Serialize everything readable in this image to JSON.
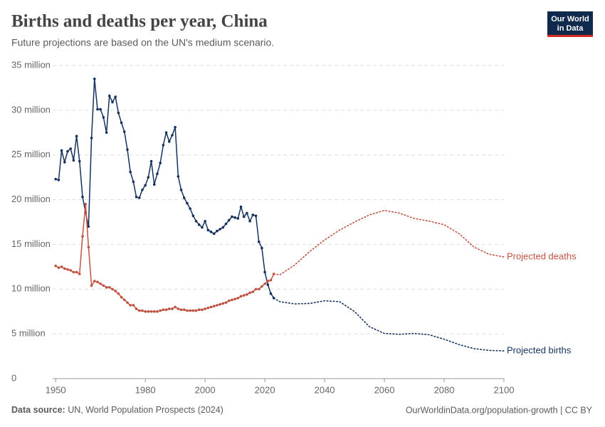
{
  "chart_data": {
    "type": "line",
    "title": "Births and deaths per year, China",
    "subtitle": "Future projections are based on the UN's medium scenario.",
    "logo": [
      "Our World",
      "in Data"
    ],
    "source_label": "Data source:",
    "source": "UN, World Population Prospects (2024)",
    "url": "OurWorldinData.org/population-growth | CC BY",
    "xlim": [
      1949,
      2100
    ],
    "xticks": [
      1950,
      1980,
      2000,
      2020,
      2040,
      2060,
      2080,
      2100
    ],
    "ylim": [
      0,
      35
    ],
    "yticks": [
      0,
      {
        "value": 5,
        "label": "5 million"
      },
      {
        "value": 10,
        "label": "10 million"
      },
      {
        "value": 15,
        "label": "15 million"
      },
      {
        "value": 20,
        "label": "20 million"
      },
      {
        "value": 25,
        "label": "25 million"
      },
      {
        "value": 30,
        "label": "30 million"
      },
      {
        "value": 35,
        "label": "35 million"
      }
    ],
    "grid": true,
    "series": [
      {
        "color": "#15325c",
        "line_style": "solid",
        "markers": true,
        "x": [
          1950,
          1951,
          1952,
          1953,
          1954,
          1955,
          1956,
          1957,
          1958,
          1959,
          1960,
          1961,
          1962,
          1963,
          1964,
          1965,
          1966,
          1967,
          1968,
          1969,
          1970,
          1971,
          1972,
          1973,
          1974,
          1975,
          1976,
          1977,
          1978,
          1979,
          1980,
          1981,
          1982,
          1983,
          1984,
          1985,
          1986,
          1987,
          1988,
          1989,
          1990,
          1991,
          1992,
          1993,
          1994,
          1995,
          1996,
          1997,
          1998,
          1999,
          2000,
          2001,
          2002,
          2003,
          2004,
          2005,
          2006,
          2007,
          2008,
          2009,
          2010,
          2011,
          2012,
          2013,
          2014,
          2015,
          2016,
          2017,
          2018,
          2019,
          2020,
          2021,
          2022,
          2023
        ],
        "values": [
          22.3,
          22.2,
          25.5,
          24.2,
          25.4,
          25.7,
          24.4,
          27.1,
          24.3,
          20.3,
          18.6,
          17.0,
          26.9,
          33.5,
          30.1,
          30.1,
          29.2,
          27.5,
          31.6,
          30.9,
          31.5,
          29.7,
          28.6,
          27.6,
          25.6,
          23.1,
          22.0,
          20.3,
          20.2,
          21.1,
          21.6,
          22.5,
          24.3,
          21.7,
          22.9,
          24.1,
          26.1,
          27.5,
          26.5,
          27.2,
          28.1,
          22.6,
          21.1,
          20.2,
          19.6,
          19.0,
          18.2,
          17.6,
          17.2,
          16.9,
          17.6,
          16.6,
          16.4,
          16.2,
          16.5,
          16.7,
          16.9,
          17.3,
          17.7,
          18.1,
          18.0,
          17.9,
          19.2,
          18.1,
          18.5,
          17.6,
          18.3,
          18.2,
          15.3,
          14.6,
          11.9,
          10.5,
          9.5,
          9.0
        ]
      },
      {
        "color": "#c05243",
        "line_style": "solid",
        "markers": true,
        "x": [
          1950,
          1951,
          1952,
          1953,
          1954,
          1955,
          1956,
          1957,
          1958,
          1959,
          1960,
          1961,
          1962,
          1963,
          1964,
          1965,
          1966,
          1967,
          1968,
          1969,
          1970,
          1971,
          1972,
          1973,
          1974,
          1975,
          1976,
          1977,
          1978,
          1979,
          1980,
          1981,
          1982,
          1983,
          1984,
          1985,
          1986,
          1987,
          1988,
          1989,
          1990,
          1991,
          1992,
          1993,
          1994,
          1995,
          1996,
          1997,
          1998,
          1999,
          2000,
          2001,
          2002,
          2003,
          2004,
          2005,
          2006,
          2007,
          2008,
          2009,
          2010,
          2011,
          2012,
          2013,
          2014,
          2015,
          2016,
          2017,
          2018,
          2019,
          2020,
          2021,
          2022,
          2023
        ],
        "values": [
          12.6,
          12.4,
          12.5,
          12.3,
          12.2,
          12.1,
          11.9,
          11.9,
          11.7,
          15.9,
          19.5,
          14.7,
          10.4,
          10.9,
          10.8,
          10.6,
          10.4,
          10.2,
          10.2,
          10.0,
          9.8,
          9.5,
          9.1,
          8.8,
          8.5,
          8.2,
          8.2,
          7.8,
          7.6,
          7.6,
          7.5,
          7.5,
          7.5,
          7.5,
          7.5,
          7.6,
          7.7,
          7.7,
          7.8,
          7.8,
          8.0,
          7.8,
          7.7,
          7.7,
          7.6,
          7.6,
          7.6,
          7.6,
          7.7,
          7.7,
          7.8,
          7.9,
          8.0,
          8.1,
          8.2,
          8.3,
          8.4,
          8.5,
          8.7,
          8.8,
          8.9,
          9.0,
          9.2,
          9.3,
          9.4,
          9.6,
          9.7,
          10.0,
          10.0,
          10.3,
          10.6,
          10.9,
          11.0,
          11.7
        ]
      },
      {
        "name": "Projected deaths",
        "color": "#c05243",
        "line_style": "dotted",
        "markers": false,
        "x": [
          2023,
          2025,
          2030,
          2035,
          2040,
          2045,
          2050,
          2055,
          2060,
          2065,
          2070,
          2075,
          2080,
          2085,
          2090,
          2095,
          2100
        ],
        "values": [
          11.7,
          11.6,
          12.7,
          14.2,
          15.5,
          16.6,
          17.5,
          18.3,
          18.8,
          18.5,
          17.9,
          17.6,
          17.2,
          16.2,
          14.7,
          13.9,
          13.6
        ]
      },
      {
        "name": "Projected births",
        "color": "#15325c",
        "line_style": "dotted",
        "markers": false,
        "x": [
          2023,
          2025,
          2030,
          2035,
          2040,
          2045,
          2050,
          2055,
          2060,
          2065,
          2070,
          2075,
          2080,
          2085,
          2090,
          2095,
          2100
        ],
        "values": [
          9.0,
          8.6,
          8.35,
          8.4,
          8.7,
          8.6,
          7.5,
          5.8,
          5.05,
          4.95,
          5.05,
          4.9,
          4.4,
          3.8,
          3.35,
          3.15,
          3.1
        ]
      }
    ]
  }
}
